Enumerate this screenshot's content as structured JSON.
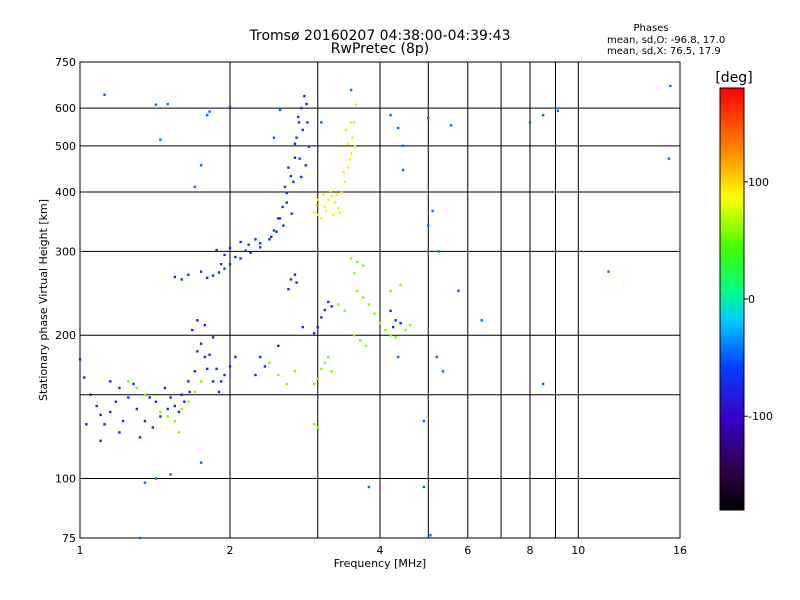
{
  "chart_data": {
    "type": "scatter",
    "title": "Tromsø 20160207 04:38:00-04:39:43",
    "subtitle": "RwPretec (8p)",
    "xlabel": "Frequency [MHz]",
    "ylabel": "Stationary phase Virtual Height [km]",
    "x_scale": "log",
    "y_scale": "log",
    "xlim": [
      1,
      16
    ],
    "ylim": [
      75,
      750
    ],
    "x_ticks": [
      1,
      2,
      4,
      6,
      8,
      10,
      16
    ],
    "x_tick_labels": [
      "1",
      "2",
      "4",
      "6",
      "8",
      "10",
      "16"
    ],
    "x_minor_grid": [
      3,
      5,
      7,
      9
    ],
    "y_ticks": [
      75,
      100,
      200,
      300,
      400,
      500,
      600,
      750
    ],
    "y_tick_labels": [
      "75",
      "100",
      "200",
      "300",
      "400",
      "500",
      "600",
      "750"
    ],
    "y_minor_grid": [
      150
    ],
    "grid": true,
    "stats_box": {
      "title": "Phases",
      "line1": "mean, sd,O: -96.8, 17.0",
      "line2": "mean, sd,X:  76.5, 17.9"
    },
    "colorbar": {
      "label": "[deg]",
      "range": [
        -180,
        180
      ],
      "ticks": [
        100,
        0,
        -100
      ],
      "tick_labels": [
        "100",
        "0",
        "-100"
      ]
    },
    "series": [
      {
        "name": "",
        "points": [
          [
            1.8,
            264
          ],
          [
            1.85,
            267
          ],
          [
            1.9,
            271
          ],
          [
            1.95,
            276
          ],
          [
            2.0,
            282
          ],
          [
            2.1,
            290
          ],
          [
            2.2,
            298
          ],
          [
            2.3,
            306
          ],
          [
            2.4,
            318
          ],
          [
            2.45,
            332
          ],
          [
            2.5,
            352
          ],
          [
            2.55,
            372
          ],
          [
            2.6,
            398
          ],
          [
            2.65,
            432
          ],
          [
            2.7,
            472
          ],
          [
            2.72,
            520
          ],
          [
            2.75,
            560
          ],
          [
            2.78,
            600
          ],
          [
            2.82,
            636
          ],
          [
            2.85,
            612
          ],
          [
            2.8,
            540
          ],
          [
            2.76,
            470
          ],
          [
            2.68,
            420
          ],
          [
            2.6,
            380
          ],
          [
            2.52,
            352
          ],
          [
            2.42,
            322
          ],
          [
            2.3,
            312
          ],
          [
            2.15,
            301
          ],
          [
            2.05,
            292
          ],
          [
            1.92,
            282
          ],
          [
            1.75,
            272
          ],
          [
            1.65,
            268
          ],
          [
            1.55,
            265
          ],
          [
            1.6,
            262
          ],
          [
            2.25,
            318
          ],
          [
            2.18,
            310
          ],
          [
            1.95,
            295
          ],
          [
            1.88,
            302
          ],
          [
            2.0,
            305
          ],
          [
            2.1,
            314
          ],
          [
            2.62,
            450
          ],
          [
            2.58,
            410
          ],
          [
            2.7,
            505
          ],
          [
            2.74,
            575
          ],
          [
            2.86,
            560
          ],
          [
            2.88,
            498
          ],
          [
            2.84,
            455
          ],
          [
            2.78,
            430
          ],
          [
            2.66,
            360
          ],
          [
            2.56,
            340
          ],
          [
            2.48,
            330
          ]
        ],
        "phase_deg": -100
      },
      {
        "name": "",
        "points": [
          [
            2.95,
            362
          ],
          [
            3.0,
            358
          ],
          [
            3.05,
            352
          ],
          [
            3.1,
            372
          ],
          [
            3.15,
            385
          ],
          [
            3.2,
            392
          ],
          [
            3.25,
            380
          ],
          [
            3.3,
            370
          ],
          [
            3.35,
            398
          ],
          [
            3.4,
            420
          ],
          [
            3.45,
            450
          ],
          [
            3.5,
            482
          ],
          [
            3.52,
            520
          ],
          [
            3.55,
            560
          ],
          [
            3.58,
            610
          ],
          [
            3.5,
            560
          ],
          [
            3.45,
            505
          ],
          [
            3.38,
            440
          ],
          [
            3.28,
            395
          ],
          [
            3.18,
            402
          ],
          [
            3.08,
            395
          ],
          [
            3.0,
            385
          ],
          [
            2.98,
            375
          ],
          [
            3.12,
            365
          ],
          [
            3.22,
            358
          ],
          [
            3.32,
            362
          ],
          [
            3.42,
            540
          ],
          [
            3.48,
            468
          ],
          [
            3.56,
            498
          ]
        ],
        "phase_deg": 95
      },
      {
        "name": "",
        "points": [
          [
            1.0,
            178
          ],
          [
            1.02,
            163
          ],
          [
            1.05,
            150
          ],
          [
            1.08,
            142
          ],
          [
            1.1,
            136
          ],
          [
            1.12,
            130
          ],
          [
            1.15,
            138
          ],
          [
            1.18,
            145
          ],
          [
            1.2,
            155
          ],
          [
            1.25,
            148
          ],
          [
            1.3,
            140
          ],
          [
            1.35,
            132
          ],
          [
            1.4,
            128
          ],
          [
            1.45,
            135
          ],
          [
            1.5,
            140
          ],
          [
            1.55,
            142
          ],
          [
            1.6,
            150
          ],
          [
            1.65,
            160
          ],
          [
            1.7,
            168
          ],
          [
            1.72,
            185
          ],
          [
            1.75,
            192
          ],
          [
            1.78,
            180
          ],
          [
            1.8,
            170
          ],
          [
            1.85,
            160
          ],
          [
            1.9,
            152
          ],
          [
            1.95,
            165
          ],
          [
            2.0,
            172
          ],
          [
            2.05,
            180
          ],
          [
            1.68,
            205
          ],
          [
            1.72,
            215
          ],
          [
            1.78,
            210
          ],
          [
            1.85,
            198
          ],
          [
            1.15,
            160
          ],
          [
            1.22,
            132
          ],
          [
            1.28,
            158
          ],
          [
            1.38,
            148
          ],
          [
            1.48,
            155
          ],
          [
            1.58,
            138
          ],
          [
            1.62,
            145
          ],
          [
            1.66,
            152
          ],
          [
            1.82,
            182
          ],
          [
            1.88,
            170
          ],
          [
            1.92,
            160
          ],
          [
            2.25,
            165
          ],
          [
            2.3,
            180
          ],
          [
            2.35,
            172
          ],
          [
            2.62,
            250
          ],
          [
            2.65,
            262
          ],
          [
            2.7,
            268
          ],
          [
            2.72,
            258
          ],
          [
            2.95,
            202
          ],
          [
            3.0,
            208
          ],
          [
            3.05,
            218
          ],
          [
            3.1,
            226
          ],
          [
            3.15,
            235
          ],
          [
            3.2,
            230
          ],
          [
            4.2,
            225
          ],
          [
            4.3,
            215
          ],
          [
            4.4,
            212
          ],
          [
            4.25,
            208
          ],
          [
            2.5,
            190
          ],
          [
            2.8,
            208
          ],
          [
            1.03,
            130
          ],
          [
            1.1,
            120
          ],
          [
            1.2,
            125
          ],
          [
            1.32,
            122
          ],
          [
            1.42,
            145
          ],
          [
            1.52,
            148
          ]
        ],
        "phase_deg": -105
      },
      {
        "name": "",
        "points": [
          [
            1.25,
            160
          ],
          [
            1.3,
            155
          ],
          [
            1.35,
            150
          ],
          [
            1.45,
            138
          ],
          [
            1.5,
            135
          ],
          [
            1.55,
            132
          ],
          [
            1.6,
            140
          ],
          [
            1.65,
            145
          ],
          [
            1.7,
            152
          ],
          [
            1.75,
            160
          ],
          [
            2.4,
            175
          ],
          [
            2.5,
            165
          ],
          [
            2.6,
            158
          ],
          [
            2.7,
            168
          ],
          [
            2.95,
            158
          ],
          [
            3.0,
            162
          ],
          [
            3.05,
            170
          ],
          [
            3.1,
            175
          ],
          [
            3.15,
            180
          ],
          [
            3.2,
            168
          ],
          [
            3.6,
            248
          ],
          [
            3.7,
            240
          ],
          [
            3.8,
            232
          ],
          [
            3.9,
            222
          ],
          [
            4.0,
            212
          ],
          [
            4.1,
            205
          ],
          [
            4.2,
            200
          ],
          [
            4.3,
            198
          ],
          [
            4.5,
            205
          ],
          [
            4.6,
            210
          ],
          [
            3.55,
            200
          ],
          [
            3.65,
            195
          ],
          [
            3.75,
            190
          ],
          [
            4.2,
            248
          ],
          [
            4.4,
            255
          ],
          [
            3.5,
            290
          ],
          [
            3.6,
            285
          ],
          [
            3.7,
            280
          ],
          [
            3.55,
            270
          ],
          [
            3.4,
            225
          ],
          [
            3.3,
            232
          ],
          [
            1.58,
            125
          ],
          [
            2.95,
            130
          ],
          [
            3.0,
            128
          ]
        ],
        "phase_deg": 55
      },
      {
        "name": "",
        "points": [
          [
            1.12,
            640
          ],
          [
            1.42,
            610
          ],
          [
            1.45,
            515
          ],
          [
            1.5,
            612
          ],
          [
            1.7,
            410
          ],
          [
            1.75,
            455
          ],
          [
            1.8,
            580
          ],
          [
            1.82,
            590
          ],
          [
            2.0,
            605
          ],
          [
            2.45,
            520
          ],
          [
            2.52,
            595
          ],
          [
            3.05,
            560
          ],
          [
            3.5,
            655
          ],
          [
            4.2,
            580
          ],
          [
            4.35,
            545
          ],
          [
            4.45,
            500
          ],
          [
            4.45,
            445
          ],
          [
            5.0,
            572
          ],
          [
            5.0,
            340
          ],
          [
            5.1,
            365
          ],
          [
            5.25,
            300
          ],
          [
            5.75,
            248
          ],
          [
            5.2,
            180
          ],
          [
            5.35,
            168
          ],
          [
            4.9,
            132
          ],
          [
            4.35,
            180
          ],
          [
            6.4,
            215
          ],
          [
            8.0,
            560
          ],
          [
            8.5,
            580
          ],
          [
            9.1,
            592
          ],
          [
            11.5,
            272
          ],
          [
            15.2,
            470
          ],
          [
            15.3,
            668
          ],
          [
            8.5,
            158
          ],
          [
            1.52,
            102
          ],
          [
            1.32,
            75
          ],
          [
            1.42,
            100
          ],
          [
            4.9,
            96
          ],
          [
            5.05,
            76
          ],
          [
            3.8,
            96
          ],
          [
            5.55,
            552
          ],
          [
            1.35,
            98
          ],
          [
            1.75,
            108
          ]
        ],
        "phase_deg": -70
      }
    ]
  }
}
